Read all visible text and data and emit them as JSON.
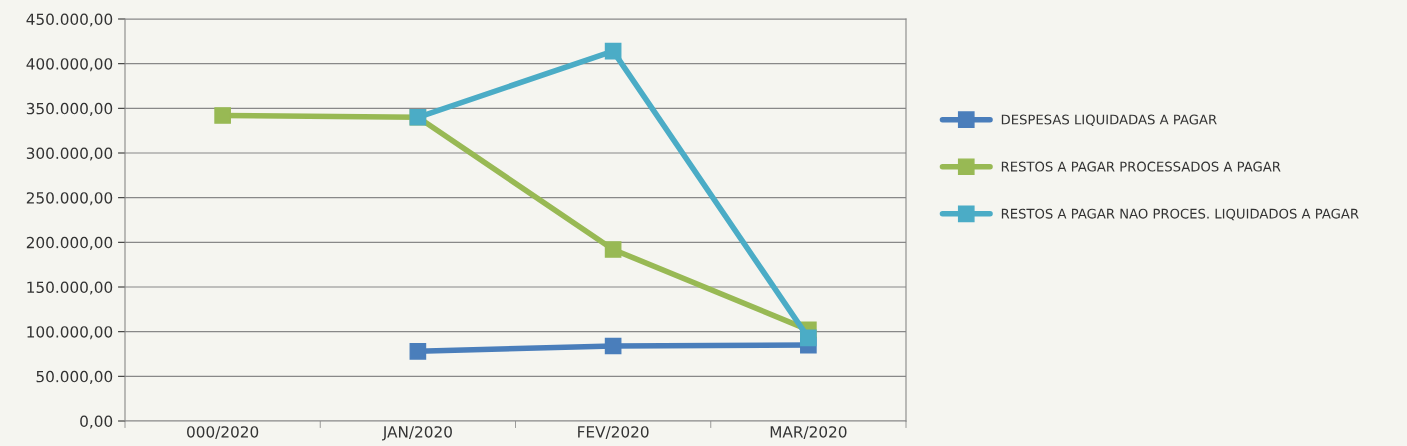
{
  "chart_data": {
    "type": "line",
    "categories": [
      "000/2020",
      "JAN/2020",
      "FEV/2020",
      "MAR/2020"
    ],
    "series": [
      {
        "name": "DESPESAS LIQUIDADAS A PAGAR",
        "color": "#4a7ebb",
        "values": [
          null,
          78000,
          84000,
          85000
        ]
      },
      {
        "name": "RESTOS A PAGAR PROCESSADOS A PAGAR",
        "color": "#98b954",
        "values": [
          342000,
          340000,
          192000,
          102000
        ]
      },
      {
        "name": "RESTOS A PAGAR NAO PROCES. LIQUIDADOS A PAGAR",
        "color": "#4bacc6",
        "values": [
          null,
          340000,
          414000,
          93000
        ]
      }
    ],
    "ylim": [
      0,
      450000
    ],
    "yticks": [
      {
        "value": 0,
        "label": "0,00"
      },
      {
        "value": 50000,
        "label": "50.000,00"
      },
      {
        "value": 100000,
        "label": "100.000,00"
      },
      {
        "value": 150000,
        "label": "150.000,00"
      },
      {
        "value": 200000,
        "label": "200.000,00"
      },
      {
        "value": 250000,
        "label": "250.000,00"
      },
      {
        "value": 300000,
        "label": "300.000,00"
      },
      {
        "value": 350000,
        "label": "350.000,00"
      },
      {
        "value": 400000,
        "label": "400.000,00"
      },
      {
        "value": 450000,
        "label": "450.000,00"
      }
    ],
    "grid": "y",
    "legend": "right",
    "marker": "square",
    "line_style": "solid"
  }
}
